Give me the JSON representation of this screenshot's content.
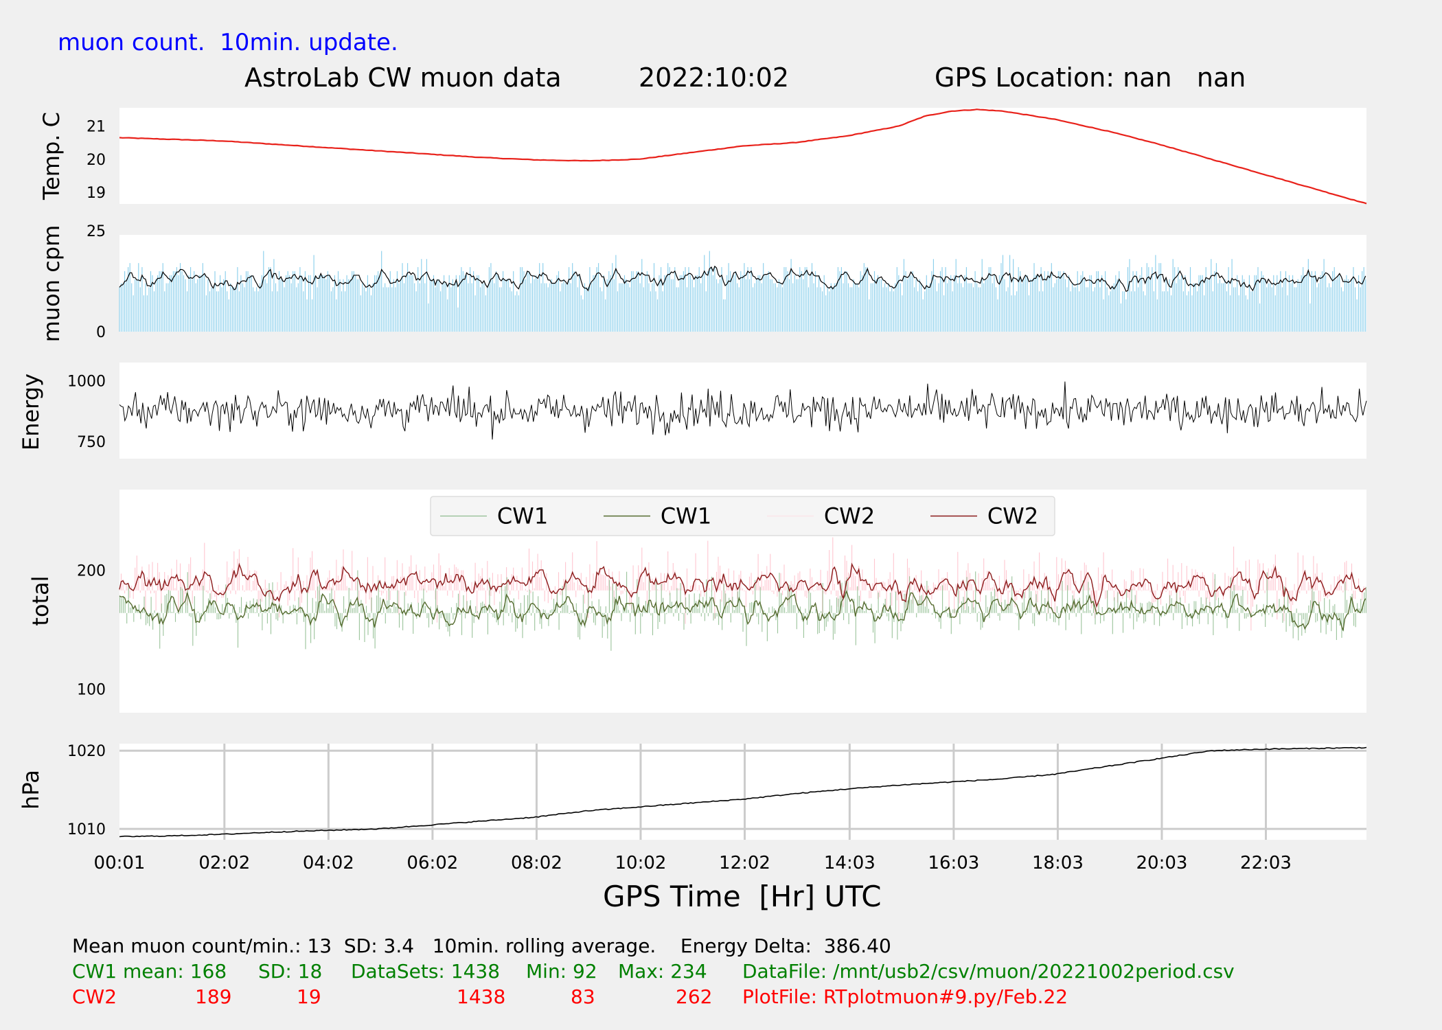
{
  "header": {
    "update_note": "muon count.  10min. update.",
    "title": "AstroLab CW muon data",
    "date": "2022:10:02",
    "gps": "GPS Location: nan   nan"
  },
  "colors": {
    "background": "#f0f0f0",
    "temp_line": "#e8211a",
    "muon_bars": "#87ceeb",
    "black": "#000000",
    "cw1_bars": "#8fbc8f",
    "cw1_line": "#556b2f",
    "cw2_bars": "#ffc0cb",
    "cw2_line": "#8b1a1a",
    "stats_green": "#008000",
    "stats_red": "#ff0000",
    "header_blue": "#0000ff",
    "grid": "#cccccc"
  },
  "chart_data": [
    {
      "id": "temp",
      "type": "line",
      "ylabel": "Temp. C",
      "yticks": [
        19,
        20,
        21
      ],
      "ylim": [
        18.65,
        21.55
      ],
      "series": [
        {
          "x": [
            0,
            1,
            2,
            3,
            4,
            5,
            6,
            7,
            8,
            9,
            10,
            11,
            12,
            13,
            14,
            15,
            15.5,
            16,
            16.5,
            17,
            18,
            19,
            20,
            21,
            22,
            23,
            24
          ],
          "values": [
            20.65,
            20.6,
            20.55,
            20.45,
            20.35,
            20.25,
            20.15,
            20.05,
            19.98,
            19.95,
            20.0,
            20.2,
            20.4,
            20.5,
            20.7,
            21.0,
            21.3,
            21.45,
            21.5,
            21.45,
            21.2,
            20.85,
            20.45,
            20.0,
            19.55,
            19.1,
            18.65
          ]
        }
      ]
    },
    {
      "id": "muon",
      "type": "bar",
      "ylabel": "muon cpm",
      "yticks": [
        0,
        25
      ],
      "ylim": [
        0,
        24
      ],
      "mean": 13,
      "sd": 3.4,
      "rolling_window_min": 10
    },
    {
      "id": "energy",
      "type": "line",
      "ylabel": "Energy",
      "yticks": [
        750,
        1000
      ],
      "ylim": [
        680,
        1075
      ],
      "mean": 880,
      "spread": 55,
      "delta": 386.4
    },
    {
      "id": "total",
      "type": "bar",
      "ylabel": "total",
      "yticks": [
        100,
        200
      ],
      "ylim": [
        80,
        268
      ],
      "legend": [
        "CW1",
        "CW1",
        "CW2",
        "CW2"
      ],
      "legend_position": "top-center",
      "series": [
        {
          "name": "CW1",
          "mean": 168,
          "sd": 18,
          "datasets": 1438,
          "min": 92,
          "max": 234
        },
        {
          "name": "CW2",
          "mean": 189,
          "sd": 19,
          "datasets": 1438,
          "min": 83,
          "max": 262
        }
      ]
    },
    {
      "id": "pressure",
      "type": "line",
      "ylabel": "hPa",
      "yticks": [
        1010,
        1020
      ],
      "ylim": [
        1008.6,
        1020.9
      ],
      "grid": true,
      "series": [
        {
          "x": [
            0,
            1,
            2,
            3,
            4,
            5,
            6,
            7,
            8,
            9,
            10,
            11,
            12,
            13,
            14,
            15,
            16,
            17,
            18,
            19,
            20,
            21,
            22,
            23,
            24
          ],
          "values": [
            1009.0,
            1009.1,
            1009.3,
            1009.6,
            1009.8,
            1010.0,
            1010.5,
            1011.0,
            1011.5,
            1012.3,
            1012.8,
            1013.3,
            1013.8,
            1014.5,
            1015.1,
            1015.6,
            1016.0,
            1016.4,
            1017.0,
            1018.0,
            1019.0,
            1020.0,
            1020.2,
            1020.3,
            1020.4
          ]
        }
      ]
    }
  ],
  "xaxis": {
    "label": "GPS Time  [Hr] UTC",
    "ticks": [
      {
        "t": 0.0167,
        "label": "00:01"
      },
      {
        "t": 2.0333,
        "label": "02:02"
      },
      {
        "t": 4.0333,
        "label": "04:02"
      },
      {
        "t": 6.0333,
        "label": "06:02"
      },
      {
        "t": 8.0333,
        "label": "08:02"
      },
      {
        "t": 10.0333,
        "label": "10:02"
      },
      {
        "t": 12.0333,
        "label": "12:02"
      },
      {
        "t": 14.05,
        "label": "14:03"
      },
      {
        "t": 16.05,
        "label": "16:03"
      },
      {
        "t": 18.05,
        "label": "18:03"
      },
      {
        "t": 20.05,
        "label": "20:03"
      },
      {
        "t": 22.05,
        "label": "22:03"
      }
    ],
    "range": [
      0.0167,
      23.9833
    ]
  },
  "stats": {
    "line1": "Mean muon count/min.: 13  SD: 3.4   10min. rolling average.    Energy Delta:  386.40",
    "cw1_label": "CW1 mean: 168",
    "cw1_sd": "SD: 18",
    "cw1_datasets": "DataSets: 1438",
    "cw1_min": "Min: 92",
    "cw1_max": "Max: 234",
    "datafile": "DataFile: /mnt/usb2/csv/muon/20221002period.csv",
    "cw2_label": "CW2",
    "cw2_mean": "189",
    "cw2_sd": "19",
    "cw2_datasets": "1438",
    "cw2_min": "83",
    "cw2_max": "262",
    "plotfile": "PlotFile: RTplotmuon#9.py/Feb.22"
  }
}
